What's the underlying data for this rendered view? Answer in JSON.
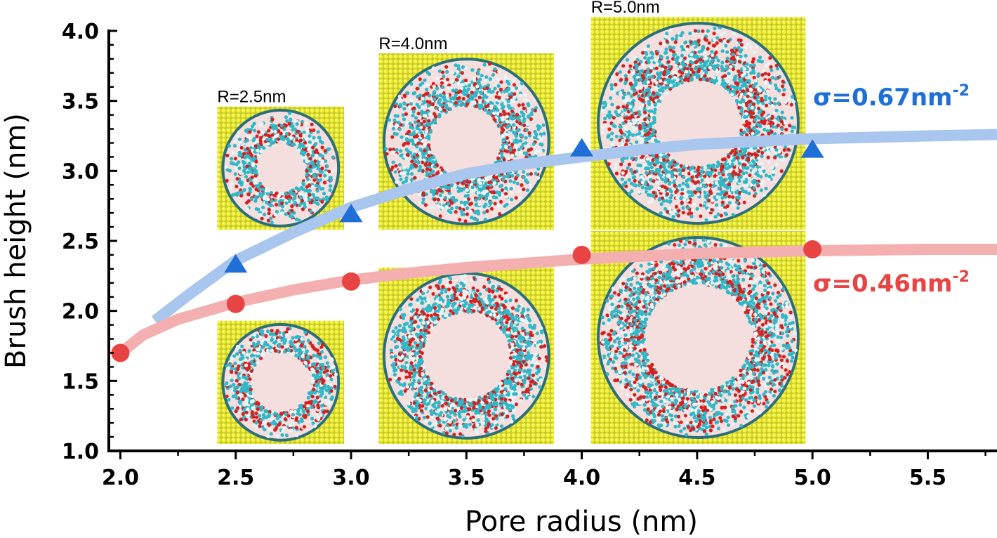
{
  "chart_data": {
    "type": "scatter",
    "xlabel": "Pore radius (nm)",
    "ylabel": "Brush height (nm)",
    "xlim": [
      1.95,
      5.8
    ],
    "ylim": [
      1.0,
      4.0
    ],
    "xticks": [
      "2.0",
      "2.5",
      "3.0",
      "3.5",
      "4.0",
      "4.5",
      "5.0",
      "5.5"
    ],
    "yticks": [
      "1.0",
      "1.5",
      "2.0",
      "2.5",
      "3.0",
      "3.5",
      "4.0"
    ],
    "grid": false,
    "series": [
      {
        "name": "σ=0.67nm⁻²",
        "label_text": "σ=0.67nm",
        "label_sup": "-2",
        "marker": "triangle",
        "color": "#1f6fd6",
        "fit_color": "#a9c6ee",
        "x": [
          2.5,
          3.0,
          4.0,
          5.0
        ],
        "y": [
          2.33,
          2.69,
          3.16,
          3.15
        ],
        "fit_x": [
          2.15,
          2.3,
          2.5,
          2.75,
          3.0,
          3.25,
          3.5,
          3.75,
          4.0,
          4.25,
          4.5,
          4.75,
          5.0,
          5.25,
          5.5,
          5.8
        ],
        "fit_y": [
          1.93,
          2.12,
          2.36,
          2.56,
          2.74,
          2.87,
          2.98,
          3.05,
          3.1,
          3.15,
          3.19,
          3.21,
          3.23,
          3.24,
          3.25,
          3.26
        ]
      },
      {
        "name": "σ=0.46nm⁻²",
        "label_text": "σ=0.46nm",
        "label_sup": "-2",
        "marker": "circle",
        "color": "#e84444",
        "fit_color": "#f4b0b0",
        "x": [
          2.0,
          2.5,
          3.0,
          4.0,
          5.0
        ],
        "y": [
          1.7,
          2.05,
          2.21,
          2.4,
          2.44
        ],
        "fit_x": [
          2.0,
          2.1,
          2.25,
          2.5,
          2.75,
          3.0,
          3.25,
          3.5,
          4.0,
          4.5,
          5.0,
          5.5,
          5.8
        ],
        "fit_y": [
          1.7,
          1.83,
          1.94,
          2.06,
          2.15,
          2.22,
          2.27,
          2.31,
          2.37,
          2.41,
          2.43,
          2.44,
          2.44
        ]
      }
    ],
    "insets": [
      {
        "label": "R=2.5nm",
        "row": "top",
        "x_from": 2.42,
        "x_to": 2.97,
        "y_from": 2.58,
        "y_to": 3.46
      },
      {
        "label": "",
        "row": "bottom",
        "x_from": 2.42,
        "x_to": 2.97,
        "y_from": 1.05,
        "y_to": 1.93
      },
      {
        "label": "R=4.0nm",
        "row": "top",
        "x_from": 3.12,
        "x_to": 3.88,
        "y_from": 2.58,
        "y_to": 3.84
      },
      {
        "label": "",
        "row": "bottom",
        "x_from": 3.12,
        "x_to": 3.88,
        "y_from": 1.05,
        "y_to": 2.31
      },
      {
        "label": "R=5.0nm",
        "row": "top",
        "x_from": 4.04,
        "x_to": 4.97,
        "y_from": 2.58,
        "y_to": 4.1
      },
      {
        "label": "",
        "row": "bottom",
        "x_from": 4.04,
        "x_to": 4.97,
        "y_from": 1.05,
        "y_to": 2.57
      }
    ]
  }
}
